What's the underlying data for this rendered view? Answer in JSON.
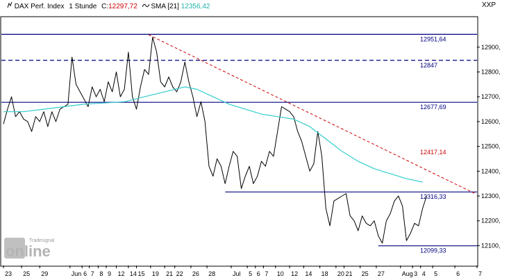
{
  "header": {
    "instrument": "DAX Perf. Index",
    "interval": "1 Stunde",
    "close_label": "C:",
    "close_value": "12297,72",
    "sma_label": "SMA [21]",
    "sma_value": "12356,42",
    "symbol": "XXP"
  },
  "watermark": {
    "brand_small": "Tradesignal",
    "brand_big": "online"
  },
  "colors": {
    "price": "#000000",
    "sma": "#33cccc",
    "level": "#000080",
    "trendline": "#cc0000",
    "close_value": "#cc0000",
    "sma_value": "#20b2aa"
  },
  "chart_data": {
    "type": "line",
    "title": "DAX Perf. Index 1 Stunde",
    "ylim": [
      12020,
      13020
    ],
    "y_ticks": [
      12100,
      12200,
      12300,
      12400,
      12500,
      12600,
      12700,
      12800,
      12900
    ],
    "y_tick_labels": [
      "12100,",
      "12200,",
      "12300,",
      "12400,",
      "12500,",
      "12600,",
      "12700,",
      "12800,",
      "12900,"
    ],
    "x_tick_labels": [
      "23",
      "25",
      "29",
      "Jun",
      "6",
      "7",
      "8",
      "9",
      "12",
      "14",
      "15",
      "19",
      "21",
      "22",
      "26",
      "28",
      "Jul",
      "5",
      "6",
      "7",
      "10",
      "12",
      "14",
      "18",
      "20",
      "21",
      "25",
      "27",
      "Aug",
      "3",
      "4",
      "5",
      "6",
      "7"
    ],
    "x_tick_positions": [
      0,
      4.5,
      9,
      16.5,
      19.5,
      21.3,
      23.5,
      25.5,
      28,
      31,
      33,
      36.5,
      40,
      42.5,
      46.5,
      50.5,
      56.5,
      60.5,
      62.5,
      64.5,
      67.5,
      71,
      74.5,
      78.5,
      82.5,
      84.5,
      88.5,
      92.5,
      98.5,
      101.5,
      103.5,
      106.5,
      112,
      117.5
    ],
    "series": [
      {
        "name": "DAX Perf. Index",
        "x": [
          0,
          1,
          2,
          3,
          4,
          5,
          6,
          7,
          8,
          9,
          10,
          11,
          12,
          13,
          14,
          15,
          16,
          17,
          18,
          19,
          20,
          21,
          22,
          23,
          24,
          25,
          26,
          27,
          28,
          29,
          30,
          31,
          32,
          33,
          34,
          35,
          36,
          37,
          38,
          39,
          40,
          41,
          42,
          43,
          44,
          45,
          46,
          47,
          48,
          49,
          50,
          51,
          52,
          53,
          54,
          55,
          56,
          57,
          58,
          59,
          60,
          61,
          62,
          63,
          64,
          65,
          66,
          67,
          68,
          69,
          70,
          71,
          72,
          73,
          74,
          75,
          76,
          77,
          78,
          79,
          80,
          81,
          82,
          83,
          84,
          85,
          86,
          87,
          88,
          89,
          90,
          91,
          92,
          93,
          94,
          95,
          96,
          97,
          98,
          99,
          100,
          101,
          102,
          103,
          104,
          105
        ],
        "y": [
          12590,
          12650,
          12700,
          12620,
          12640,
          12610,
          12600,
          12560,
          12620,
          12600,
          12640,
          12580,
          12640,
          12600,
          12650,
          12660,
          12670,
          12860,
          12750,
          12720,
          12690,
          12660,
          12740,
          12700,
          12730,
          12680,
          12760,
          12720,
          12800,
          12700,
          12730,
          12880,
          12700,
          12650,
          12740,
          12810,
          12790,
          12940,
          12880,
          12760,
          12740,
          12780,
          12740,
          12720,
          12760,
          12840,
          12760,
          12700,
          12620,
          12680,
          12600,
          12420,
          12380,
          12450,
          12420,
          12350,
          12420,
          12480,
          12460,
          12330,
          12380,
          12420,
          12350,
          12380,
          12440,
          12420,
          12480,
          12460,
          12560,
          12660,
          12650,
          12640,
          12620,
          12560,
          12520,
          12460,
          12400,
          12430,
          12560,
          12460,
          12250,
          12180,
          12280,
          12290,
          12300,
          12310,
          12220,
          12200,
          12160,
          12220,
          12190,
          12180,
          12200,
          12140,
          12110,
          12200,
          12230,
          12280,
          12300,
          12260,
          12120,
          12150,
          12190,
          12180,
          12250,
          12300
        ]
      },
      {
        "name": "SMA [21]",
        "x": [
          0,
          5,
          10,
          15,
          20,
          25,
          30,
          35,
          40,
          45,
          48,
          52,
          56,
          60,
          64,
          68,
          72,
          76,
          80,
          84,
          88,
          92,
          96,
          100,
          104
        ],
        "y": [
          12640,
          12640,
          12650,
          12660,
          12670,
          12675,
          12680,
          12700,
          12720,
          12740,
          12730,
          12700,
          12670,
          12650,
          12630,
          12620,
          12610,
          12580,
          12530,
          12480,
          12440,
          12410,
          12390,
          12370,
          12356
        ]
      }
    ],
    "horizontal_levels": [
      {
        "value": 12951.64,
        "label": "12951,64",
        "style": "solid"
      },
      {
        "value": 12847,
        "label": "12847",
        "style": "dashed"
      },
      {
        "value": 12677.69,
        "label": "12677,69",
        "style": "solid"
      },
      {
        "value": 12316.33,
        "label": "12316,33",
        "style": "solid"
      },
      {
        "value": 12099.33,
        "label": "12099,33",
        "style": "solid"
      }
    ],
    "trendline": {
      "label": "12417,14",
      "style": "dashed",
      "x": [
        36,
        117
      ],
      "y": [
        12950,
        12310
      ]
    },
    "grid": false,
    "legend": "top-left"
  }
}
